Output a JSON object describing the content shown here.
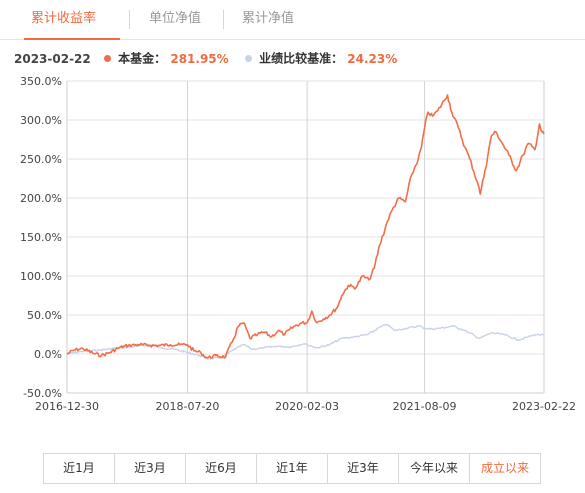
{
  "tabs": [
    {
      "label": "累计收益率",
      "active": true
    },
    {
      "label": "单位净值",
      "active": false
    },
    {
      "label": "累计净值",
      "active": false
    }
  ],
  "summary": {
    "date": "2023-02-22",
    "fund_label": "本基金：",
    "fund_value": "281.95%",
    "benchmark_label": "业绩比较基准：",
    "benchmark_value": "24.23%"
  },
  "colors": {
    "accent": "#f06b3d",
    "fund_line": "#f36d47",
    "benchmark_line": "#c9d2e6"
  },
  "periods": [
    {
      "label": "近1月",
      "active": false
    },
    {
      "label": "近3月",
      "active": false
    },
    {
      "label": "近6月",
      "active": false
    },
    {
      "label": "近1年",
      "active": false
    },
    {
      "label": "近3年",
      "active": false
    },
    {
      "label": "今年以来",
      "active": false
    },
    {
      "label": "成立以来",
      "active": true
    }
  ],
  "chart_data": {
    "type": "line",
    "title": "",
    "xlabel": "",
    "ylabel": "",
    "ylim": [
      -50,
      350
    ],
    "y_ticks": [
      "350.0%",
      "300.0%",
      "250.0%",
      "200.0%",
      "150.0%",
      "100.0%",
      "50.0%",
      "0.0%",
      "-50.0%"
    ],
    "y_tick_values": [
      350,
      300,
      250,
      200,
      150,
      100,
      50,
      0,
      -50
    ],
    "x_ticks": [
      "2016-12-30",
      "2018-07-20",
      "2020-02-03",
      "2021-08-09",
      "2023-02-22"
    ],
    "x_range": [
      "2016-12-30",
      "2023-02-22"
    ],
    "grid": true,
    "legend": "top-left",
    "series": [
      {
        "name": "本基金",
        "color": "#f36d47",
        "points": [
          [
            "2016-12-30",
            0
          ],
          [
            "2017-02-01",
            5
          ],
          [
            "2017-03-15",
            7
          ],
          [
            "2017-05-01",
            1
          ],
          [
            "2017-06-10",
            -2
          ],
          [
            "2017-07-20",
            2
          ],
          [
            "2017-09-01",
            8
          ],
          [
            "2017-10-15",
            11
          ],
          [
            "2017-12-01",
            12
          ],
          [
            "2018-01-20",
            11
          ],
          [
            "2018-03-10",
            11
          ],
          [
            "2018-05-01",
            12
          ],
          [
            "2018-06-15",
            12
          ],
          [
            "2018-07-20",
            12
          ],
          [
            "2018-08-20",
            4
          ],
          [
            "2018-09-20",
            2
          ],
          [
            "2018-10-20",
            -5
          ],
          [
            "2018-12-01",
            -2
          ],
          [
            "2019-01-15",
            -4
          ],
          [
            "2019-02-15",
            15
          ],
          [
            "2019-03-15",
            35
          ],
          [
            "2019-04-10",
            40
          ],
          [
            "2019-05-10",
            20
          ],
          [
            "2019-06-15",
            25
          ],
          [
            "2019-07-15",
            28
          ],
          [
            "2019-08-20",
            22
          ],
          [
            "2019-09-20",
            30
          ],
          [
            "2019-10-20",
            25
          ],
          [
            "2019-12-01",
            35
          ],
          [
            "2020-01-10",
            40
          ],
          [
            "2020-02-03",
            40
          ],
          [
            "2020-02-25",
            55
          ],
          [
            "2020-03-20",
            40
          ],
          [
            "2020-04-20",
            45
          ],
          [
            "2020-05-20",
            50
          ],
          [
            "2020-06-25",
            60
          ],
          [
            "2020-07-15",
            75
          ],
          [
            "2020-08-15",
            88
          ],
          [
            "2020-09-20",
            85
          ],
          [
            "2020-10-20",
            100
          ],
          [
            "2020-11-20",
            95
          ],
          [
            "2020-12-15",
            110
          ],
          [
            "2021-01-10",
            140
          ],
          [
            "2021-02-15",
            170
          ],
          [
            "2021-03-10",
            185
          ],
          [
            "2021-04-10",
            200
          ],
          [
            "2021-05-10",
            195
          ],
          [
            "2021-06-10",
            230
          ],
          [
            "2021-07-10",
            250
          ],
          [
            "2021-07-25",
            265
          ],
          [
            "2021-08-09",
            290
          ],
          [
            "2021-08-25",
            310
          ],
          [
            "2021-09-15",
            305
          ],
          [
            "2021-10-10",
            312
          ],
          [
            "2021-11-10",
            325
          ],
          [
            "2021-11-25",
            332
          ],
          [
            "2021-12-15",
            310
          ],
          [
            "2022-01-15",
            290
          ],
          [
            "2022-02-15",
            265
          ],
          [
            "2022-03-10",
            250
          ],
          [
            "2022-04-15",
            220
          ],
          [
            "2022-04-28",
            205
          ],
          [
            "2022-05-20",
            235
          ],
          [
            "2022-06-20",
            280
          ],
          [
            "2022-07-10",
            285
          ],
          [
            "2022-08-10",
            270
          ],
          [
            "2022-09-10",
            255
          ],
          [
            "2022-10-15",
            235
          ],
          [
            "2022-11-15",
            255
          ],
          [
            "2022-12-10",
            270
          ],
          [
            "2023-01-10",
            262
          ],
          [
            "2023-02-01",
            295
          ],
          [
            "2023-02-10",
            285
          ],
          [
            "2023-02-22",
            281.95
          ]
        ]
      },
      {
        "name": "业绩比较基准",
        "color": "#c9d2e6",
        "points": [
          [
            "2016-12-30",
            0
          ],
          [
            "2017-03-01",
            3
          ],
          [
            "2017-06-01",
            5
          ],
          [
            "2017-09-01",
            8
          ],
          [
            "2017-12-01",
            10
          ],
          [
            "2018-01-20",
            12
          ],
          [
            "2018-03-15",
            8
          ],
          [
            "2018-05-20",
            6
          ],
          [
            "2018-07-20",
            2
          ],
          [
            "2018-09-15",
            -2
          ],
          [
            "2018-10-20",
            -6
          ],
          [
            "2018-12-25",
            -5
          ],
          [
            "2019-02-20",
            5
          ],
          [
            "2019-04-10",
            12
          ],
          [
            "2019-05-20",
            6
          ],
          [
            "2019-07-15",
            8
          ],
          [
            "2019-09-15",
            10
          ],
          [
            "2019-11-15",
            9
          ],
          [
            "2020-01-15",
            13
          ],
          [
            "2020-02-03",
            12
          ],
          [
            "2020-03-20",
            8
          ],
          [
            "2020-05-20",
            12
          ],
          [
            "2020-07-15",
            20
          ],
          [
            "2020-09-15",
            22
          ],
          [
            "2020-11-15",
            25
          ],
          [
            "2021-01-15",
            35
          ],
          [
            "2021-02-15",
            38
          ],
          [
            "2021-03-20",
            30
          ],
          [
            "2021-05-15",
            33
          ],
          [
            "2021-07-15",
            36
          ],
          [
            "2021-08-09",
            33
          ],
          [
            "2021-09-15",
            32
          ],
          [
            "2021-11-15",
            34
          ],
          [
            "2021-12-20",
            36
          ],
          [
            "2022-02-15",
            30
          ],
          [
            "2022-04-25",
            20
          ],
          [
            "2022-06-20",
            27
          ],
          [
            "2022-08-15",
            25
          ],
          [
            "2022-10-25",
            18
          ],
          [
            "2022-12-10",
            22
          ],
          [
            "2023-01-15",
            25
          ],
          [
            "2023-02-22",
            24.23
          ]
        ]
      }
    ]
  }
}
